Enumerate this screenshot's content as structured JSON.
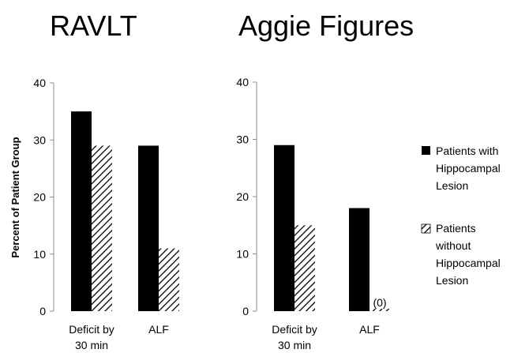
{
  "colors": {
    "solid": "#000000",
    "axis": "#8c8c8c",
    "hatch": "#000000",
    "background": "#ffffff"
  },
  "chart_data": [
    {
      "type": "bar",
      "title": "RAVLT",
      "ylabel": "Percent of Patient Group",
      "ylim": [
        0,
        40
      ],
      "yticks": [
        "0",
        "10",
        "20",
        "30",
        "40"
      ],
      "categories": [
        "Deficit by 30 min",
        "ALF"
      ],
      "series": [
        {
          "name": "Patients with Hippocampal Lesion",
          "pattern": "solid",
          "values": [
            35,
            29
          ]
        },
        {
          "name": "Patients without Hippocampal Lesion",
          "pattern": "hatch",
          "values": [
            29,
            11
          ]
        }
      ],
      "annotations": []
    },
    {
      "type": "bar",
      "title": "Aggie Figures",
      "ylabel": "",
      "ylim": [
        0,
        40
      ],
      "yticks": [
        "0",
        "10",
        "20",
        "30",
        "40"
      ],
      "categories": [
        "Deficit by 30 min",
        "ALF"
      ],
      "series": [
        {
          "name": "Patients with Hippocampal Lesion",
          "pattern": "solid",
          "values": [
            29,
            18
          ]
        },
        {
          "name": "Patients without Hippocampal Lesion",
          "pattern": "hatch",
          "values": [
            15,
            0
          ]
        }
      ],
      "annotations": [
        {
          "text": "(0)",
          "series": 1,
          "category": 1
        }
      ]
    }
  ],
  "legend": {
    "position": "right",
    "items": [
      {
        "lines": [
          "Patients with",
          "Hippocampal",
          "Lesion"
        ],
        "pattern": "solid"
      },
      {
        "lines": [
          "Patients",
          "without",
          "Hippocampal",
          "Lesion"
        ],
        "pattern": "hatch"
      }
    ]
  }
}
